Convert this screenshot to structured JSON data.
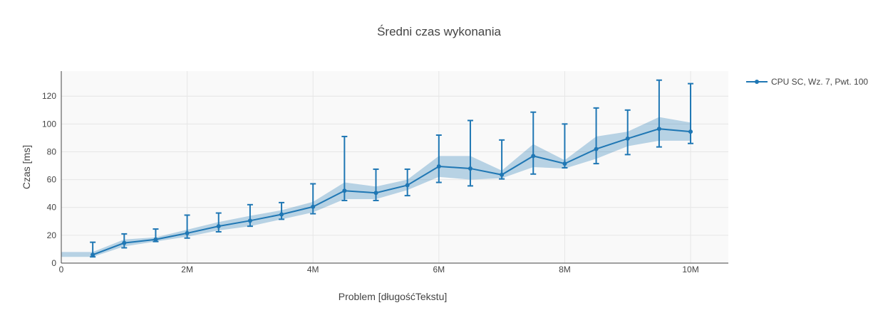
{
  "chart_data": {
    "type": "line",
    "title": "Średni czas wykonania",
    "xlabel": "Problem [długośćTekstu]",
    "ylabel": "Czas [ms]",
    "xlim": [
      0,
      10600000
    ],
    "ylim": [
      0,
      138
    ],
    "x_ticks": [
      {
        "value": 0,
        "label": "0"
      },
      {
        "value": 2000000,
        "label": "2M"
      },
      {
        "value": 4000000,
        "label": "4M"
      },
      {
        "value": 6000000,
        "label": "6M"
      },
      {
        "value": 8000000,
        "label": "8M"
      },
      {
        "value": 10000000,
        "label": "10M"
      }
    ],
    "y_ticks": [
      {
        "value": 0,
        "label": "0"
      },
      {
        "value": 20,
        "label": "20"
      },
      {
        "value": 40,
        "label": "40"
      },
      {
        "value": 60,
        "label": "60"
      },
      {
        "value": 80,
        "label": "80"
      },
      {
        "value": 100,
        "label": "100"
      },
      {
        "value": 120,
        "label": "120"
      }
    ],
    "grid": true,
    "legend_position": "top-right",
    "colors": {
      "line": "#1f77b4",
      "band": "rgba(31,119,180,0.3)",
      "plot_bg": "#f9f9f9",
      "grid": "#e6e6e6"
    },
    "series": [
      {
        "name": "CPU SC, Wz. 7, Pwt. 100",
        "x": [
          500000,
          1000000,
          1500000,
          2000000,
          2500000,
          3000000,
          3500000,
          4000000,
          4500000,
          5000000,
          5500000,
          6000000,
          6500000,
          7000000,
          7500000,
          8000000,
          8500000,
          9000000,
          9500000,
          10000000
        ],
        "y": [
          6,
          14.5,
          17,
          21.5,
          26.5,
          30.5,
          35,
          40.5,
          52,
          50.5,
          56,
          69.5,
          68,
          63.5,
          77,
          71.5,
          82,
          89.5,
          96.5,
          94.5
        ],
        "err_low": [
          4.5,
          11,
          15.5,
          18,
          22.5,
          26.5,
          31.5,
          35.5,
          45,
          45,
          48.5,
          58,
          55.5,
          60.5,
          64,
          68.5,
          71.5,
          78,
          83.5,
          86
        ],
        "err_high": [
          15,
          21,
          24.5,
          34.5,
          36,
          42,
          43.5,
          57,
          91,
          67.5,
          67.5,
          92,
          102.5,
          88.5,
          108.5,
          100,
          111.5,
          110,
          131.5,
          129
        ],
        "band": {
          "x": [
            0,
            500000,
            1000000,
            1500000,
            2000000,
            2500000,
            3000000,
            3500000,
            4000000,
            4500000,
            5000000,
            5500000,
            6000000,
            6500000,
            7000000,
            7500000,
            8000000,
            8500000,
            9000000,
            9500000,
            10000000
          ],
          "low": [
            4.5,
            4.5,
            12,
            15.5,
            19,
            23.5,
            26.5,
            31.5,
            36.5,
            46,
            46,
            52.5,
            62,
            60,
            61,
            69,
            68,
            75,
            84,
            88,
            88
          ],
          "high": [
            8,
            8,
            17,
            18.5,
            24,
            29.5,
            34,
            38,
            44,
            58,
            55,
            60,
            77,
            77,
            66.5,
            85.5,
            74,
            91,
            94.5,
            105,
            101
          ]
        }
      }
    ]
  }
}
